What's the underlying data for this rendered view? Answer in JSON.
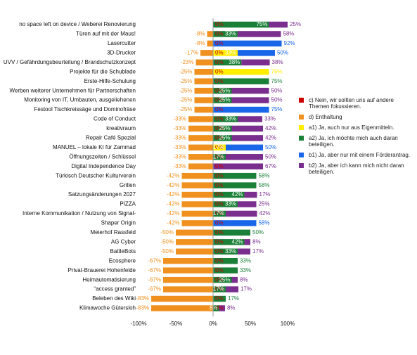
{
  "chart_data": {
    "type": "diverging-bar",
    "categories": [
      "no space left on device / Weberei Renovierung",
      "Türen auf mit der Maus!",
      "Lasercutter",
      "3D-Drucker",
      "UVV / Gefährdungsbeurteilung / Brandschutzkonzept",
      "Projekte für die Schublade",
      "Erste-Hilfe-Schulung",
      "Werben weiterer Unternehmen für Partnerschaften",
      "Monitoring von IT, Umbauten, ausgeliehenen",
      "Festool Tischkreissäge und Dominofräse",
      "Code of Conduct",
      "kreativraum",
      "Repair Café Spezial",
      "MANUEL – lokale KI für Zammad",
      "Öffnungszeiten / Schlüssel",
      "Digital Independence Day",
      "Türkisch Deutscher Kulturverein",
      "Grillen",
      "Satzungsänderungen 2027",
      "PIZZA",
      "Interne Kommunikation / Nutzung von Signal-",
      "Shaper Origin",
      "Meierhof Rassfeld",
      "AG Cyber",
      "BattleBots",
      "Ecosphere",
      "Privat-Brauerei Hohenfelde",
      "Heimautomatisierung",
      "“access granted”",
      "Beleben des Wiki",
      "Klimawoche Gütersloh"
    ],
    "series": [
      {
        "name": "c) Nein, wir sollten uns auf andere Themen fokussieren.",
        "color": "#cc0000",
        "values": [
          0,
          0,
          0,
          0,
          0,
          0,
          0,
          0,
          0,
          0,
          0,
          0,
          0,
          0,
          0,
          0,
          0,
          0,
          0,
          0,
          0,
          0,
          0,
          0,
          0,
          0,
          0,
          0,
          0,
          0,
          0
        ],
        "value_labels": [
          "0%",
          "0%",
          "0%",
          "0%",
          "0%",
          "0%",
          "0%",
          "0%",
          "0%",
          "0%",
          "0%",
          "0%",
          "0%",
          "0%",
          "0%",
          "0%",
          "0%",
          "0%",
          "0%",
          "0%",
          "0%",
          "0%",
          "0%",
          "0%",
          "0%",
          "0%",
          "0%",
          "0%",
          "0%",
          "0%",
          "0%"
        ]
      },
      {
        "name": "d) Enthaltung",
        "color": "#f0901e",
        "values": [
          0,
          -8,
          -8,
          -17,
          -23,
          -25,
          -25,
          -25,
          -25,
          -25,
          -33,
          -33,
          -33,
          -33,
          -33,
          -33,
          -42,
          -42,
          -42,
          -42,
          -42,
          -42,
          -50,
          -50,
          -50,
          -67,
          -67,
          -67,
          -67,
          -83,
          -83
        ],
        "value_labels": [
          null,
          "-8%",
          "-8%",
          "-17%",
          "-23%",
          "-25%",
          "-25%",
          "-25%",
          "-25%",
          "-25%",
          "-33%",
          "-33%",
          "-33%",
          "-33%",
          "-33%",
          "-33%",
          "-42%",
          "-42%",
          "-42%",
          "-42%",
          "-42%",
          "-42%",
          "-50%",
          "-50%",
          "-50%",
          "-67%",
          "-67%",
          "-67%",
          "-67%",
          "-83%",
          "-83%"
        ]
      },
      {
        "name": "a1) Ja, auch nur aus Eigenmitteln.",
        "color": "#ffee00",
        "values": [
          0,
          0,
          0,
          33,
          0,
          75,
          0,
          0,
          0,
          0,
          0,
          0,
          0,
          17,
          0,
          0,
          0,
          0,
          0,
          0,
          0,
          0,
          0,
          0,
          0,
          0,
          0,
          0,
          0,
          0,
          0
        ],
        "value_labels": [
          null,
          null,
          null,
          "33%",
          null,
          "75%",
          null,
          null,
          null,
          null,
          null,
          null,
          null,
          "17%",
          null,
          null,
          null,
          null,
          null,
          null,
          null,
          null,
          null,
          null,
          null,
          null,
          null,
          null,
          null,
          null,
          null
        ]
      },
      {
        "name": "a2) Ja, ich möchte mich auch daran beteiligen.",
        "color": "#1a7f37",
        "values": [
          75,
          33,
          0,
          0,
          38,
          0,
          75,
          25,
          25,
          0,
          33,
          25,
          25,
          0,
          17,
          0,
          58,
          58,
          42,
          33,
          17,
          0,
          50,
          42,
          33,
          33,
          33,
          25,
          17,
          17,
          8
        ],
        "value_labels": [
          "75%",
          "33%",
          null,
          null,
          "38%",
          null,
          "75%",
          "25%",
          "25%",
          null,
          "33%",
          "25%",
          "25%",
          null,
          "17%",
          null,
          "58%",
          "58%",
          "42%",
          "33%",
          "17%",
          null,
          "50%",
          "42%",
          "33%",
          "33%",
          "33%",
          "25%",
          "17%",
          "17%",
          "8%"
        ]
      },
      {
        "name": "b1) Ja, aber nur mit einem Förderantrag.",
        "color": "#1a66e8",
        "values": [
          0,
          0,
          92,
          50,
          0,
          0,
          0,
          0,
          0,
          75,
          0,
          0,
          0,
          50,
          0,
          0,
          0,
          0,
          0,
          0,
          0,
          58,
          0,
          0,
          0,
          0,
          0,
          0,
          0,
          0,
          0
        ],
        "value_labels": [
          null,
          null,
          "92%",
          "50%",
          null,
          null,
          null,
          null,
          null,
          "75%",
          null,
          null,
          null,
          "50%",
          null,
          null,
          null,
          null,
          null,
          null,
          null,
          "58%",
          null,
          null,
          null,
          null,
          null,
          null,
          null,
          null,
          null
        ]
      },
      {
        "name": "b2) Ja, aber ich kann mich nicht daran beteiligen.",
        "color": "#7a2e8e",
        "values": [
          25,
          58,
          0,
          0,
          38,
          0,
          0,
          50,
          50,
          0,
          33,
          42,
          42,
          0,
          50,
          67,
          0,
          0,
          17,
          25,
          42,
          0,
          0,
          8,
          17,
          0,
          0,
          8,
          17,
          0,
          8
        ],
        "value_labels": [
          "25%",
          "58%",
          null,
          null,
          "38%",
          null,
          null,
          "50%",
          "50%",
          null,
          "33%",
          "42%",
          "42%",
          null,
          "50%",
          "67%",
          null,
          null,
          "17%",
          "25%",
          "42%",
          null,
          null,
          "8%",
          "17%",
          null,
          null,
          "8%",
          "17%",
          null,
          "8%"
        ]
      }
    ],
    "xlim": [
      -100,
      100
    ],
    "xticks": [
      {
        "value": -100,
        "label": "-100%"
      },
      {
        "value": -50,
        "label": "-50%"
      },
      {
        "value": 0,
        "label": "0%"
      },
      {
        "value": 50,
        "label": "50%"
      },
      {
        "value": 100,
        "label": "100%"
      }
    ]
  }
}
